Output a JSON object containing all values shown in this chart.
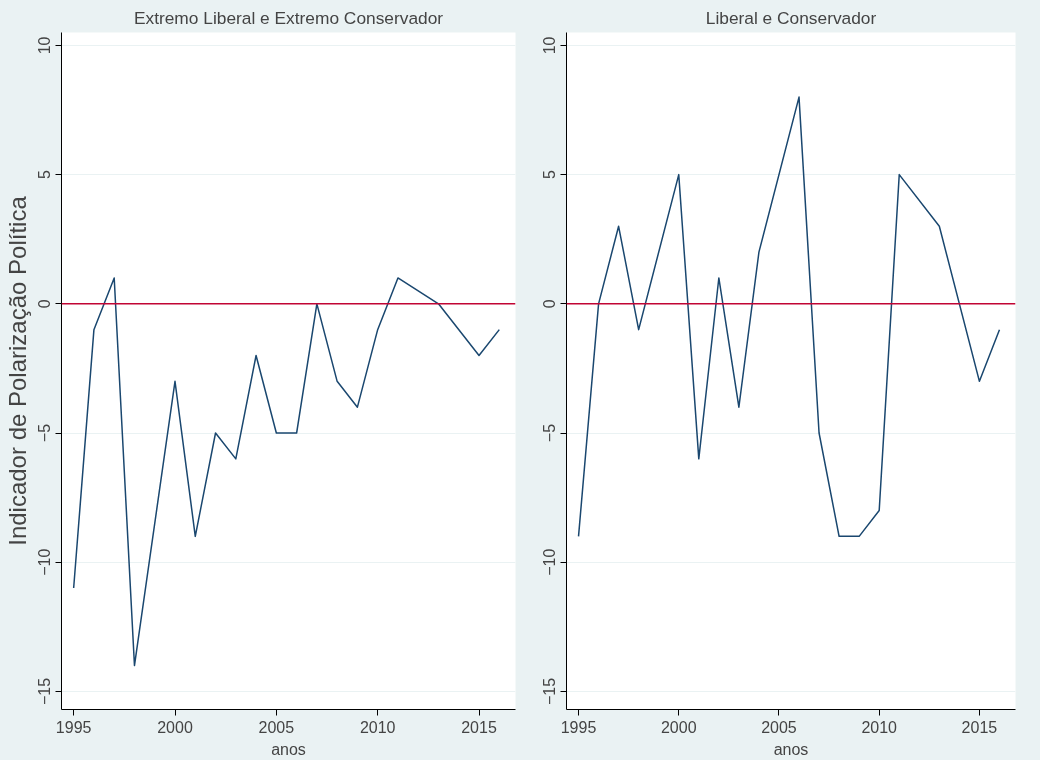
{
  "chart_data": [
    {
      "type": "line",
      "title": "Extremo Liberal e Extremo Conservador",
      "xlabel": "anos",
      "ylabel": "Indicador de Polarização Política",
      "x": [
        1995,
        1996,
        1997,
        1998,
        2000,
        2001,
        2002,
        2003,
        2004,
        2005,
        2006,
        2007,
        2008,
        2009,
        2010,
        2011,
        2013,
        2015,
        2016
      ],
      "series": [
        {
          "color": "#1a476f",
          "values": [
            -11,
            -1,
            1,
            -14,
            -3,
            -9,
            -5,
            -6,
            -2,
            -5,
            -5,
            0,
            -3,
            -4,
            -1,
            1,
            0,
            -2,
            -1
          ]
        }
      ],
      "xlim": [
        1994.4,
        2016.8
      ],
      "xticks": [
        1995,
        2000,
        2005,
        2010,
        2015
      ],
      "ylim": [
        -15.7,
        10.5
      ],
      "yticks": [
        -15,
        -10,
        -5,
        0,
        5,
        10
      ],
      "ref_lines": [
        {
          "axis": "y",
          "value": 0,
          "color": "#c10534"
        }
      ],
      "grid": "y",
      "marker": "none",
      "line_style": "solid"
    },
    {
      "type": "line",
      "title": "Liberal e Conservador",
      "xlabel": "anos",
      "x": [
        1995,
        1996,
        1997,
        1998,
        2000,
        2001,
        2002,
        2003,
        2004,
        2006,
        2007,
        2008,
        2009,
        2010,
        2011,
        2013,
        2015,
        2016
      ],
      "series": [
        {
          "color": "#1a476f",
          "values": [
            -9,
            0,
            3,
            -1,
            5,
            -6,
            1,
            -4,
            2,
            8,
            -5,
            -9,
            -9,
            -8,
            5,
            3,
            -3,
            -1
          ]
        }
      ],
      "xlim": [
        1994.4,
        2016.8
      ],
      "xticks": [
        1995,
        2000,
        2005,
        2010,
        2015
      ],
      "ylim": [
        -15.7,
        10.5
      ],
      "yticks": [
        -15,
        -10,
        -5,
        0,
        5,
        10
      ],
      "ref_lines": [
        {
          "axis": "y",
          "value": 0,
          "color": "#c10534"
        }
      ],
      "grid": "y",
      "marker": "none",
      "line_style": "solid"
    }
  ]
}
